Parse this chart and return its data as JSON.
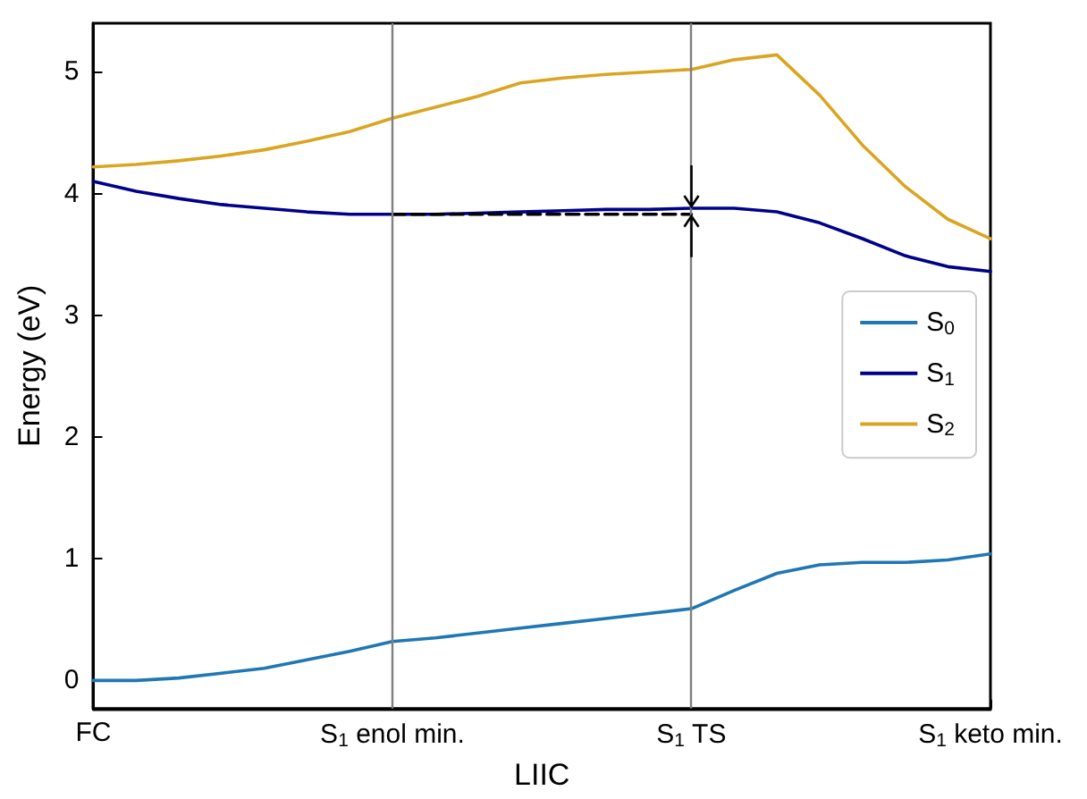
{
  "chart_data": {
    "type": "line",
    "xlabel": "LIIC",
    "ylabel": "Energy (eV)",
    "categories": [
      "FC",
      null,
      null,
      null,
      null,
      null,
      null,
      "S$_{1}$ enol min.",
      null,
      null,
      null,
      null,
      null,
      null,
      "S$_{1}$ TS",
      null,
      null,
      null,
      null,
      null,
      null,
      "S$_{1}$ keto min."
    ],
    "ylim": [
      -0.23,
      5.4
    ],
    "yticks": [
      0,
      1,
      2,
      3,
      4,
      5
    ],
    "series": [
      {
        "name": "S$_{0}$",
        "color": "#1f77b4",
        "values": [
          0.0,
          0.0,
          0.02,
          0.06,
          0.1,
          0.17,
          0.24,
          0.32,
          0.35,
          0.39,
          0.43,
          0.47,
          0.51,
          0.55,
          0.59,
          0.74,
          0.88,
          0.95,
          0.97,
          0.97,
          0.99,
          1.04
        ]
      },
      {
        "name": "S$_{1}$",
        "color": "#00008b",
        "values": [
          4.1,
          4.02,
          3.96,
          3.91,
          3.88,
          3.85,
          3.83,
          3.83,
          3.83,
          3.84,
          3.85,
          3.86,
          3.87,
          3.87,
          3.88,
          3.88,
          3.85,
          3.76,
          3.63,
          3.49,
          3.4,
          3.36
        ]
      },
      {
        "name": "S$_{2}$",
        "color": "#daa520",
        "values": [
          4.22,
          4.24,
          4.27,
          4.31,
          4.36,
          4.43,
          4.51,
          4.62,
          4.71,
          4.8,
          4.91,
          4.95,
          4.98,
          5.0,
          5.02,
          5.1,
          5.14,
          4.81,
          4.4,
          4.06,
          3.79,
          3.63
        ]
      },
      {
        "type": "line",
        "values": [
          null,
          null,
          null,
          null,
          null,
          null,
          null,
          3.83,
          3.83,
          3.83,
          3.83,
          3.83,
          3.83,
          3.83,
          3.83,
          null,
          null,
          null,
          null,
          null,
          null,
          null
        ],
        "color": "#000000",
        "line_style": "dashed"
      }
    ],
    "ref_lines": [
      {
        "axis": "x",
        "value": "S$_{1}$ enol min.",
        "color": "#808080"
      },
      {
        "axis": "x",
        "value": "S$_{1}$ TS",
        "color": "#808080"
      }
    ],
    "legend": "right",
    "grid": false,
    "marker": "none"
  }
}
